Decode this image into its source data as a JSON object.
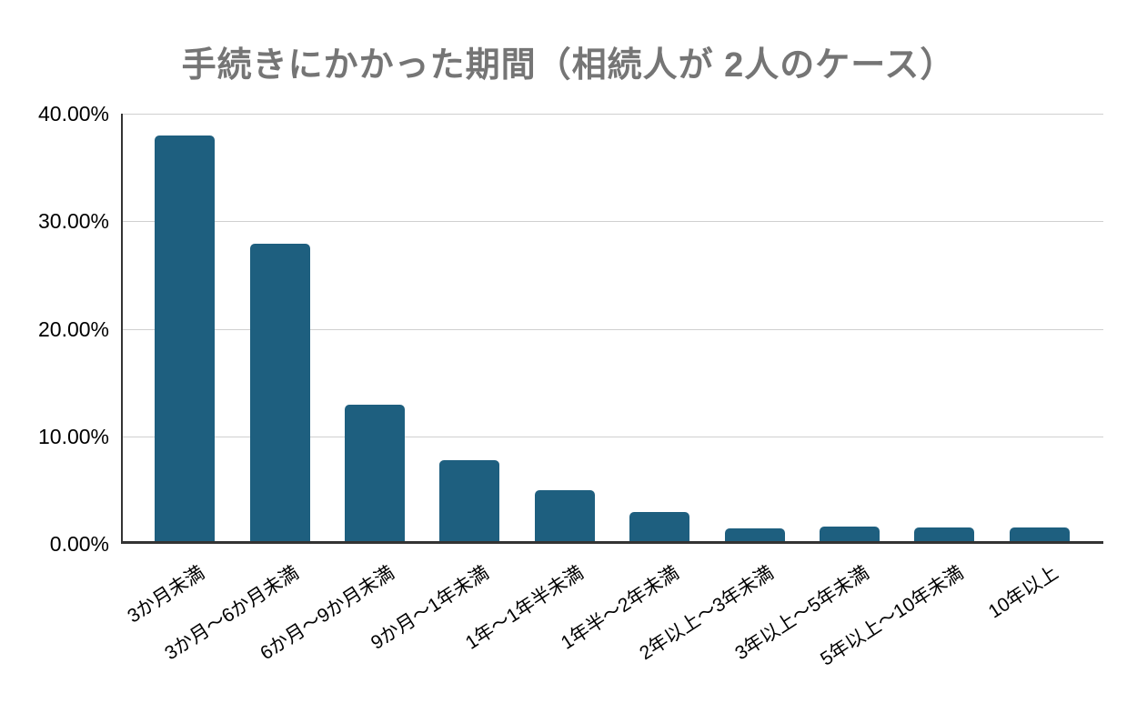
{
  "chart_data": {
    "type": "bar",
    "title": "手続きにかかった期間（相続人が 2人のケース）",
    "categories": [
      "3か月未満",
      "3か月～6か月未満",
      "6か月～9か月未満",
      "9か月～1年未満",
      "1年～1年半未満",
      "1年半～2年未満",
      "2年以上～3年未満",
      "3年以上～5年未満",
      "5年以上～10年未満",
      "10年以上"
    ],
    "values": [
      38.0,
      27.8,
      12.8,
      7.6,
      4.8,
      2.7,
      1.2,
      1.4,
      1.3,
      1.3
    ],
    "unit": "%",
    "xlabel": "",
    "ylabel": "",
    "ylim": [
      0,
      40
    ],
    "ytick_labels": [
      "40.00%",
      "30.00%",
      "20.00%",
      "10.00%",
      "0.00%"
    ],
    "grid": "horizontal",
    "legend": "none",
    "colors": {
      "bar": "#1E5F7F",
      "title": "#757575",
      "gridline": "#D0D0D0",
      "axis": "#333333",
      "tick_text": "#000000"
    }
  }
}
